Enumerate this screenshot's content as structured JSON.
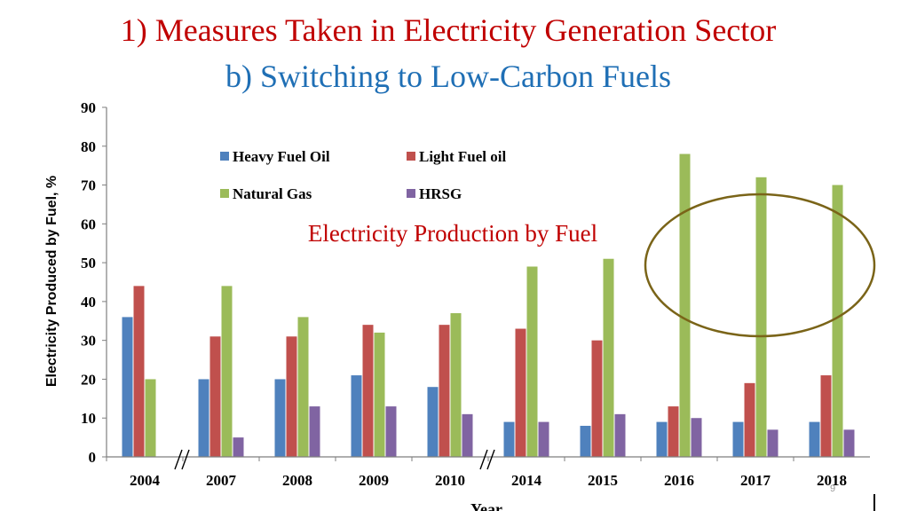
{
  "slide": {
    "title": "1) Measures Taken in Electricity Generation Sector",
    "subtitle": "b) Switching to Low-Carbon Fuels",
    "page_number": "9"
  },
  "colors": {
    "title": "#c00000",
    "subtitle": "#1f6fb5",
    "annotation": "#c00000",
    "highlight_ellipse": "#7a6418"
  },
  "chart_data": {
    "type": "bar",
    "annotation": "Electricity Production by Fuel",
    "xlabel": "Year",
    "ylabel": "Electricity Produced by Fuel, %",
    "ylim": [
      0,
      90
    ],
    "yticks": [
      0,
      10,
      20,
      30,
      40,
      50,
      60,
      70,
      80,
      90
    ],
    "categories": [
      "2004",
      "2007",
      "2008",
      "2009",
      "2010",
      "2014",
      "2015",
      "2016",
      "2017",
      "2018"
    ],
    "axis_breaks_after": [
      "2004",
      "2010"
    ],
    "legend_position": "top-center",
    "grid": false,
    "highlight": {
      "shape": "ellipse",
      "categories": [
        "2016",
        "2017",
        "2018"
      ]
    },
    "series": [
      {
        "name": "Heavy Fuel Oil",
        "color": "#4f81bd",
        "values": [
          36,
          20,
          20,
          21,
          18,
          9,
          8,
          9,
          9,
          9
        ]
      },
      {
        "name": "Light Fuel oil",
        "color": "#c0504d",
        "values": [
          44,
          31,
          31,
          34,
          34,
          33,
          30,
          13,
          19,
          21
        ]
      },
      {
        "name": "Natural Gas",
        "color": "#9bbb59",
        "values": [
          20,
          44,
          36,
          32,
          37,
          49,
          51,
          78,
          72,
          70
        ]
      },
      {
        "name": "HRSG",
        "color": "#8064a2",
        "values": [
          0,
          5,
          13,
          13,
          11,
          9,
          11,
          10,
          7,
          7
        ]
      }
    ]
  }
}
